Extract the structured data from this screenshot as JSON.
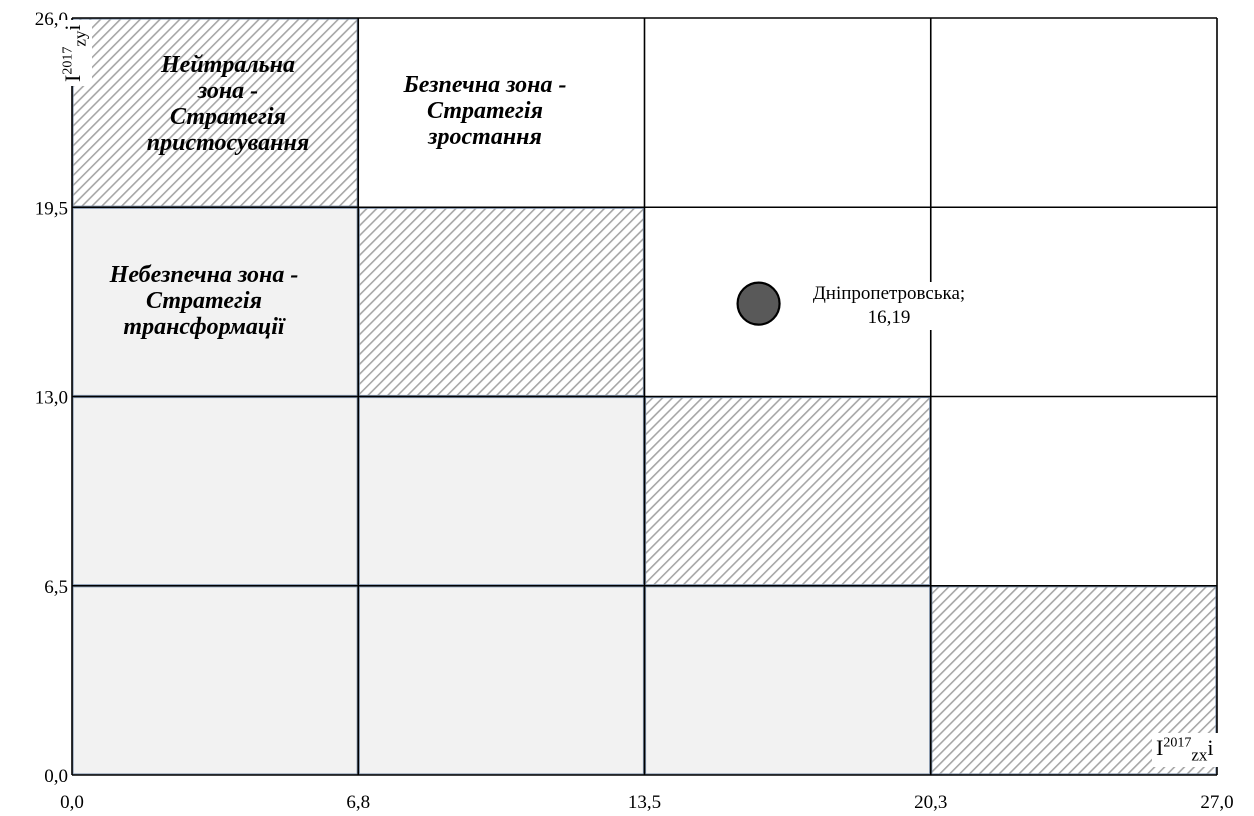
{
  "chart_data": {
    "type": "scatter",
    "xlim": [
      0,
      27
    ],
    "ylim": [
      0,
      26
    ],
    "x_ticks": [
      "0,0",
      "6,8",
      "13,5",
      "20,3",
      "27,0"
    ],
    "y_ticks": [
      "0,0",
      "6,5",
      "13,0",
      "19,5",
      "26,0"
    ],
    "x_breaks": [
      0,
      6.75,
      13.5,
      20.25,
      27
    ],
    "y_breaks": [
      0,
      6.5,
      13,
      19.5,
      26
    ],
    "xlabel": {
      "base": "I",
      "sup": "2017",
      "sub": "zx",
      "tail": "i"
    },
    "ylabel": {
      "base": "I",
      "sup": "2017",
      "sub": "zy",
      "tail": "i"
    },
    "grid": true,
    "cells": [
      {
        "col": 0,
        "row": 3,
        "fill": "hatched"
      },
      {
        "col": 1,
        "row": 3,
        "fill": "white"
      },
      {
        "col": 2,
        "row": 3,
        "fill": "white"
      },
      {
        "col": 3,
        "row": 3,
        "fill": "white"
      },
      {
        "col": 0,
        "row": 2,
        "fill": "gray"
      },
      {
        "col": 1,
        "row": 2,
        "fill": "hatched"
      },
      {
        "col": 2,
        "row": 2,
        "fill": "white"
      },
      {
        "col": 3,
        "row": 2,
        "fill": "white"
      },
      {
        "col": 0,
        "row": 1,
        "fill": "gray"
      },
      {
        "col": 1,
        "row": 1,
        "fill": "gray"
      },
      {
        "col": 2,
        "row": 1,
        "fill": "hatched"
      },
      {
        "col": 3,
        "row": 1,
        "fill": "white"
      },
      {
        "col": 0,
        "row": 0,
        "fill": "gray"
      },
      {
        "col": 1,
        "row": 0,
        "fill": "gray"
      },
      {
        "col": 2,
        "row": 0,
        "fill": "gray"
      },
      {
        "col": 3,
        "row": 0,
        "fill": "hatched"
      }
    ],
    "points": [
      {
        "name": "Дніпропетровська",
        "x": 16.19,
        "y": 16.19,
        "label_line1": "Дніпропетровська;",
        "label_line2": "16,19"
      }
    ],
    "zones": {
      "neutral": [
        "Нейтральна",
        "зона -",
        "Стратегія",
        "пристосування"
      ],
      "safe": [
        "Безпечна зона -",
        "Стратегія",
        "зростання"
      ],
      "danger": [
        "Небезпечна зона -",
        "Стратегія",
        "трансформації"
      ]
    }
  },
  "colors": {
    "gray_fill": "#f2f2f2",
    "hatch_line": "#a6a6a6",
    "grid": "#000000",
    "cell_outline": "#8497b0",
    "point_fill": "#595959"
  }
}
